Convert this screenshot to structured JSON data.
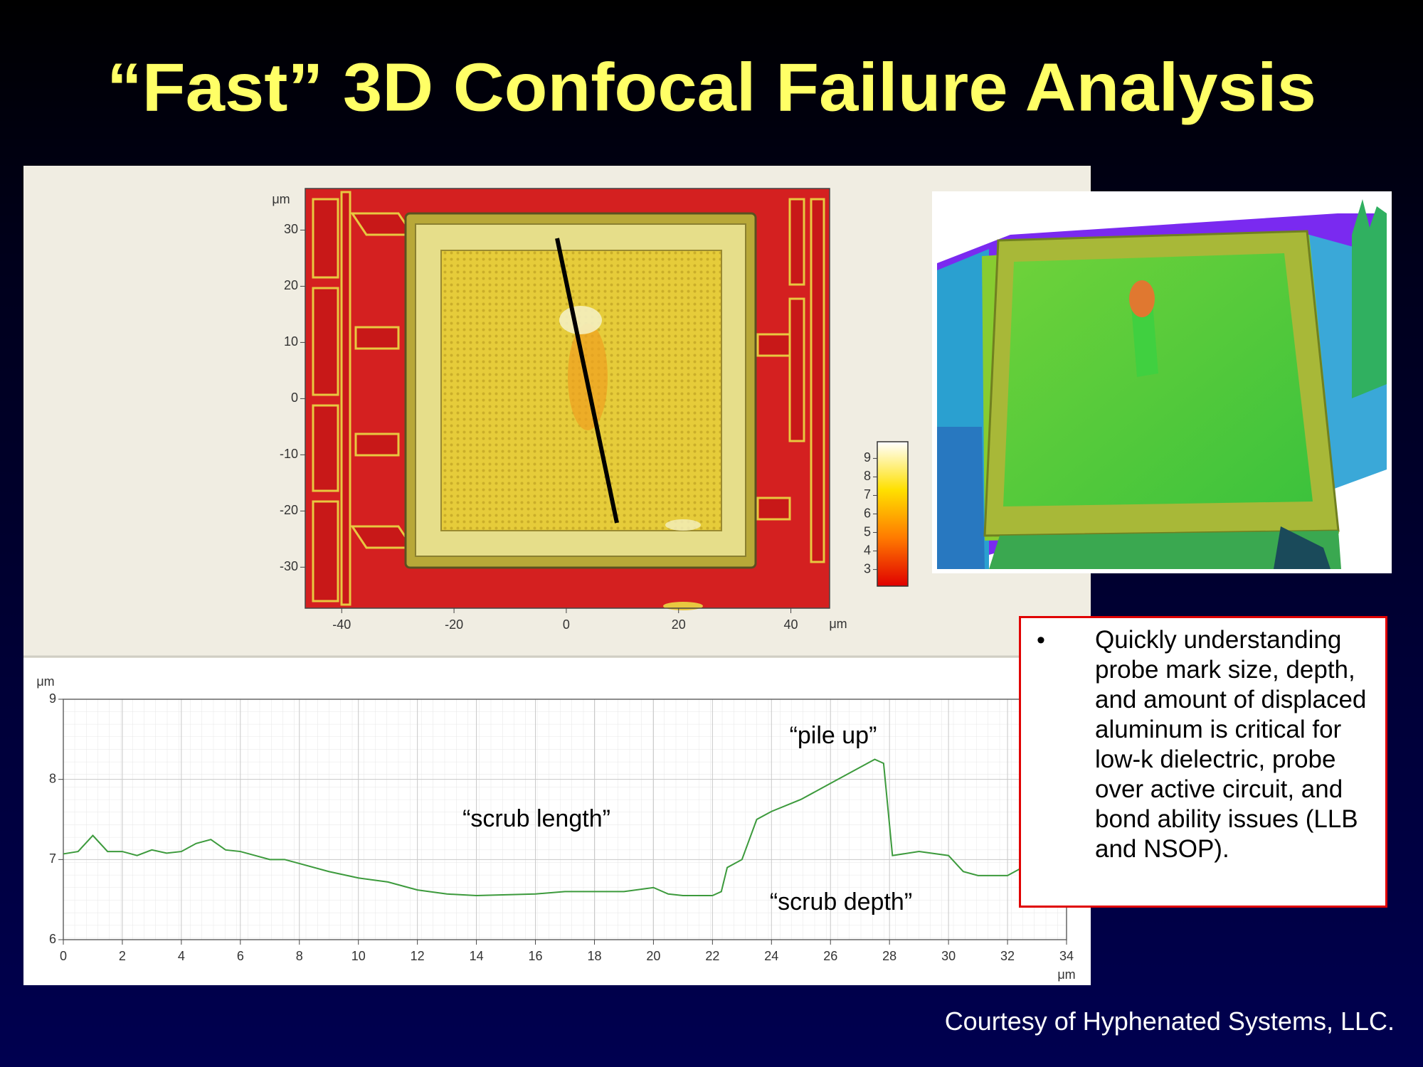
{
  "title": "“Fast” 3D Confocal Failure Analysis",
  "chart_data": [
    {
      "type": "heatmap",
      "xlabel": "μm",
      "ylabel": "μm",
      "xlim": [
        -46.5,
        46.9
      ],
      "ylim": [
        -37.3,
        37.4
      ],
      "xticks": [
        -40,
        -20,
        0,
        20,
        40
      ],
      "yticks": [
        -30,
        -20,
        -10,
        0,
        10,
        20,
        30
      ],
      "colorbar": {
        "lim": [
          2.1,
          9.9
        ],
        "ticks": [
          3,
          4,
          5,
          6,
          7,
          8,
          9
        ],
        "colors": [
          "#e00000",
          "#ff7a00",
          "#ffe000",
          "#ffffff"
        ]
      }
    },
    {
      "type": "line",
      "xlabel": "μm",
      "ylabel": "μm",
      "xlim": [
        0,
        34
      ],
      "ylim": [
        6,
        9
      ],
      "xticks": [
        0,
        2,
        4,
        6,
        8,
        10,
        12,
        14,
        16,
        18,
        20,
        22,
        24,
        26,
        28,
        30,
        32,
        34
      ],
      "yticks": [
        6,
        7,
        8,
        9
      ],
      "grid": true,
      "x": [
        0,
        0.5,
        1,
        1.5,
        2,
        2.5,
        3,
        3.5,
        4,
        4.5,
        5,
        5.5,
        6,
        6.5,
        7,
        7.5,
        8,
        9,
        10,
        11,
        12,
        13,
        14,
        15,
        16,
        17,
        18,
        19,
        20,
        20.5,
        21,
        22,
        22.3,
        22.5,
        23,
        23.5,
        24,
        25,
        26,
        27,
        27.5,
        27.8,
        28.1,
        29,
        30,
        30.5,
        31,
        32,
        32.5
      ],
      "series": [
        {
          "color": "#3c9a3c",
          "values": [
            7.07,
            7.1,
            7.3,
            7.1,
            7.1,
            7.05,
            7.12,
            7.08,
            7.1,
            7.2,
            7.25,
            7.12,
            7.1,
            7.05,
            7.0,
            7.0,
            6.95,
            6.85,
            6.77,
            6.72,
            6.62,
            6.57,
            6.55,
            6.56,
            6.57,
            6.6,
            6.6,
            6.6,
            6.65,
            6.57,
            6.55,
            6.55,
            6.6,
            6.9,
            7.0,
            7.5,
            7.6,
            7.75,
            7.95,
            8.15,
            8.25,
            8.2,
            7.05,
            7.1,
            7.05,
            6.85,
            6.8,
            6.8,
            6.9
          ]
        }
      ],
      "annotations": [
        "“pile up”",
        "“scrub length”",
        "“scrub depth”"
      ]
    }
  ],
  "bullet": {
    "marker": "•",
    "text": "Quickly understanding probe mark size, depth, and amount of displaced aluminum is critical for low-k dielectric, probe over active circuit, and bond ability issues (LLB and NSOP)."
  },
  "courtesy": "Courtesy of Hyphenated Systems, LLC."
}
